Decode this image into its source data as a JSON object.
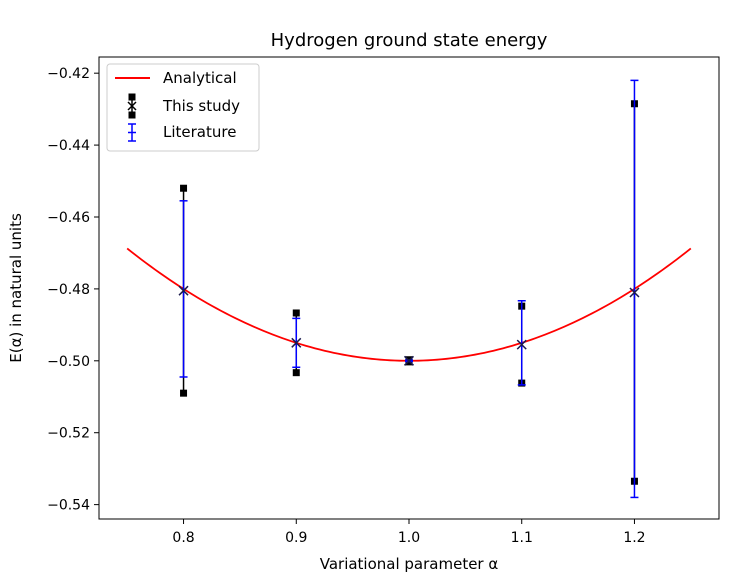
{
  "chart_data": {
    "type": "line",
    "title": "Hydrogen ground state energy",
    "xlabel": "Variational parameter α",
    "ylabel": "E(α) in natural units",
    "xlim": [
      0.725,
      1.275
    ],
    "ylim": [
      -0.544,
      -0.4155
    ],
    "x_ticks": [
      0.8,
      0.9,
      1.0,
      1.1,
      1.2
    ],
    "x_tick_labels": [
      "0.8",
      "0.9",
      "1.0",
      "1.1",
      "1.2"
    ],
    "y_ticks": [
      -0.42,
      -0.44,
      -0.46,
      -0.48,
      -0.5,
      -0.52,
      -0.54
    ],
    "y_tick_labels": [
      "−0.42",
      "−0.44",
      "−0.46",
      "−0.48",
      "−0.50",
      "−0.52",
      "−0.54"
    ],
    "grid": false,
    "legend_position": "top-left",
    "series": [
      {
        "name": "Analytical",
        "kind": "curve",
        "color": "#ff0000",
        "formula": "alpha^2/2 - alpha",
        "x_range": [
          0.75,
          1.25
        ]
      },
      {
        "name": "This study",
        "kind": "errorbar",
        "color": "#000000",
        "marker": "x",
        "capstyle": "square",
        "x": [
          0.8,
          0.9,
          1.0,
          1.1,
          1.2
        ],
        "y": [
          -0.4805,
          -0.495,
          -0.5,
          -0.4955,
          -0.481
        ],
        "yerr": [
          0.0285,
          0.0083,
          0.0003,
          0.0107,
          0.0525
        ]
      },
      {
        "name": "Literature",
        "kind": "errorbar",
        "color": "#0000ff",
        "marker": "+",
        "capstyle": "line",
        "x": [
          0.8,
          0.9,
          1.0,
          1.1,
          1.2
        ],
        "y": [
          -0.48,
          -0.495,
          -0.5,
          -0.495,
          -0.48
        ],
        "yerr": [
          0.0245,
          0.0068,
          0.0002,
          0.0117,
          0.058
        ]
      }
    ]
  }
}
